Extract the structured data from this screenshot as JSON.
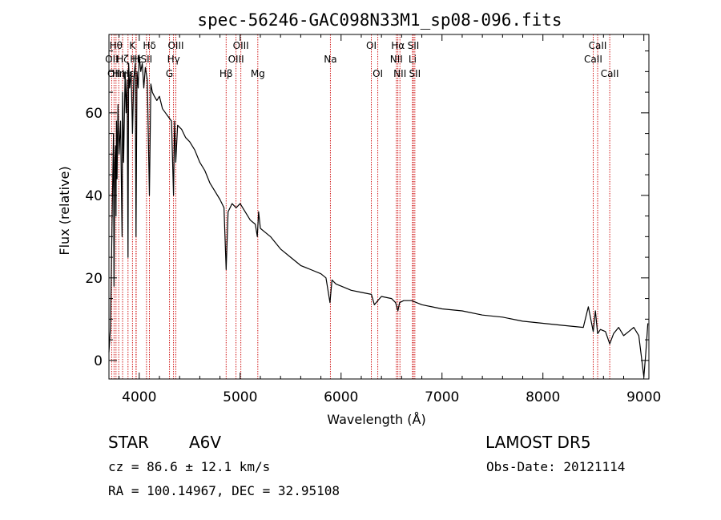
{
  "colors": {
    "spectrum": "#000000",
    "line_markers": "#cc0000",
    "axes": "#000000",
    "background": "#ffffff"
  },
  "chart_data": {
    "type": "line",
    "title": "spec-56246-GAC098N33M1_sp08-096.fits",
    "xlabel": "Wavelength (Å)",
    "ylabel": "Flux (relative)",
    "xlim": [
      3700,
      9050
    ],
    "ylim": [
      -4.5,
      79
    ],
    "xticks": [
      4000,
      5000,
      6000,
      7000,
      8000,
      9000
    ],
    "xtick_labels": [
      "4000",
      "5000",
      "6000",
      "7000",
      "8000",
      "9000"
    ],
    "yticks": [
      0,
      20,
      40,
      60
    ],
    "ytick_labels": [
      "0",
      "20",
      "40",
      "60"
    ],
    "grid": false,
    "legend": "none",
    "series": [
      {
        "x": [
          3700,
          3715,
          3735,
          3745,
          3750,
          3758,
          3765,
          3770,
          3775,
          3780,
          3790,
          3800,
          3815,
          3830,
          3835,
          3845,
          3860,
          3870,
          3880,
          3889,
          3895,
          3905,
          3920,
          3933,
          3945,
          3960,
          3968,
          3978,
          3990,
          4000,
          4015,
          4030,
          4045,
          4060,
          4080,
          4101,
          4115,
          4130,
          4150,
          4175,
          4200,
          4230,
          4260,
          4290,
          4320,
          4340,
          4350,
          4362,
          4380,
          4420,
          4460,
          4500,
          4550,
          4600,
          4650,
          4700,
          4750,
          4800,
          4840,
          4861,
          4880,
          4920,
          4960,
          5000,
          5050,
          5100,
          5150,
          5170,
          5183,
          5200,
          5250,
          5300,
          5400,
          5500,
          5600,
          5700,
          5800,
          5850,
          5890,
          5910,
          5950,
          6000,
          6100,
          6200,
          6300,
          6330,
          6400,
          6500,
          6540,
          6563,
          6580,
          6620,
          6700,
          6800,
          6900,
          7000,
          7200,
          7400,
          7600,
          7800,
          8000,
          8200,
          8400,
          8450,
          8498,
          8520,
          8542,
          8570,
          8620,
          8662,
          8700,
          8750,
          8800,
          8850,
          8900,
          8950,
          8980,
          9000,
          9020,
          9040
        ],
        "y": [
          2,
          8,
          40,
          55,
          18,
          48,
          52,
          35,
          58,
          44,
          62,
          50,
          58,
          30,
          65,
          48,
          70,
          60,
          68,
          25,
          72,
          66,
          70,
          55,
          68,
          72,
          30,
          70,
          66,
          74,
          70,
          72,
          66,
          71,
          68,
          40,
          67,
          65,
          64,
          63,
          64,
          61,
          60,
          59,
          58,
          40,
          58,
          48,
          57,
          56,
          54,
          53,
          51,
          48,
          46,
          43,
          41,
          39,
          37,
          22,
          36,
          38,
          37,
          38,
          36,
          34,
          33,
          30,
          36,
          32,
          31,
          30,
          27,
          25,
          23,
          22,
          21,
          20,
          14,
          19.5,
          18.5,
          18,
          17,
          16.5,
          16,
          13.5,
          15.5,
          15,
          14,
          12,
          14,
          14.5,
          14.5,
          13.5,
          13,
          12.5,
          12,
          11,
          10.5,
          9.5,
          9,
          8.5,
          8,
          13,
          7,
          12,
          6.5,
          7.5,
          7,
          4,
          6.5,
          8,
          6,
          7,
          8,
          6,
          0,
          -4,
          2,
          9
        ]
      }
    ],
    "line_markers": [
      {
        "wave": 3727,
        "label": "OII",
        "row": 2
      },
      {
        "wave": 3750,
        "label": "OII",
        "row": 3
      },
      {
        "wave": 3770,
        "label": "Hθ",
        "row": 1
      },
      {
        "wave": 3797,
        "label": "Hη",
        "row": 3
      },
      {
        "wave": 3835,
        "label": "Hζ",
        "row": 2
      },
      {
        "wave": 3889,
        "label": "Hε",
        "row": 3
      },
      {
        "wave": 3933,
        "label": "K",
        "row": 1
      },
      {
        "wave": 3968,
        "label": "H",
        "row": 2
      },
      {
        "wave": 3970,
        "label": "Hε",
        "row": 2
      },
      {
        "wave": 4072,
        "label": "SII",
        "row": 2
      },
      {
        "wave": 4101,
        "label": "Hδ",
        "row": 1
      },
      {
        "wave": 4300,
        "label": "G",
        "row": 3
      },
      {
        "wave": 4340,
        "label": "Hγ",
        "row": 2
      },
      {
        "wave": 4363,
        "label": "OIII",
        "row": 1
      },
      {
        "wave": 4861,
        "label": "Hβ",
        "row": 3
      },
      {
        "wave": 4959,
        "label": "OIII",
        "row": 2
      },
      {
        "wave": 5007,
        "label": "OIII",
        "row": 1
      },
      {
        "wave": 5175,
        "label": "Mg",
        "row": 3
      },
      {
        "wave": 5894,
        "label": "Na",
        "row": 2
      },
      {
        "wave": 6300,
        "label": "OI",
        "row": 1
      },
      {
        "wave": 6364,
        "label": "OI",
        "row": 3
      },
      {
        "wave": 6548,
        "label": "NII",
        "row": 2
      },
      {
        "wave": 6563,
        "label": "Hα",
        "row": 1
      },
      {
        "wave": 6583,
        "label": "NII",
        "row": 3
      },
      {
        "wave": 6708,
        "label": "Li",
        "row": 2
      },
      {
        "wave": 6716,
        "label": "SII",
        "row": 1
      },
      {
        "wave": 6731,
        "label": "SII",
        "row": 3
      },
      {
        "wave": 8498,
        "label": "CaII",
        "row": 2
      },
      {
        "wave": 8542,
        "label": "CaII",
        "row": 1
      },
      {
        "wave": 8662,
        "label": "CaII",
        "row": 3
      }
    ]
  },
  "info": {
    "object_class": "STAR",
    "subclass": "A6V",
    "survey": "LAMOST DR5",
    "redshift": "cz = 86.6 ± 12.1 km/s",
    "obs_date": "Obs-Date: 20121114",
    "coords": "RA = 100.14967, DEC =  32.95108"
  }
}
